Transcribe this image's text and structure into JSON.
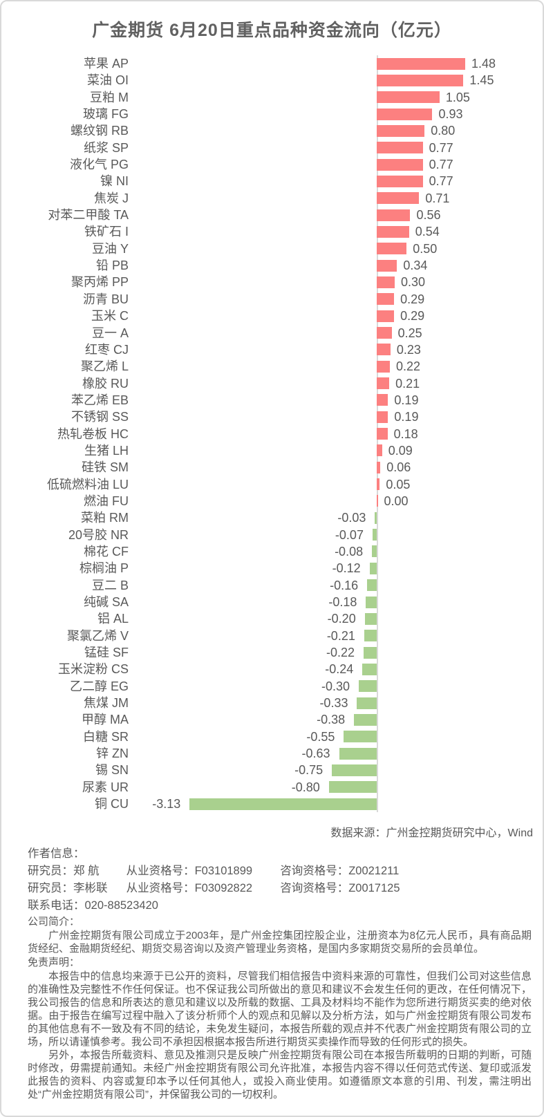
{
  "title": "广金期货 6月20日重点品种资金流向（亿元）",
  "chart_data": {
    "type": "bar",
    "orientation": "horizontal",
    "title": "广金期货 6月20日重点品种资金流向（亿元）",
    "unit": "亿元",
    "xlim": [
      -3.5,
      1.7
    ],
    "grid": false,
    "legend": "none",
    "categories": [
      "苹果 AP",
      "菜油 OI",
      "豆粕 M",
      "玻璃 FG",
      "螺纹钢 RB",
      "纸浆 SP",
      "液化气 PG",
      "镍 NI",
      "焦炭 J",
      "对苯二甲酸 TA",
      "铁矿石 I",
      "豆油 Y",
      "铅 PB",
      "聚丙烯 PP",
      "沥青 BU",
      "玉米 C",
      "豆一 A",
      "红枣 CJ",
      "聚乙烯 L",
      "橡胶 RU",
      "苯乙烯 EB",
      "不锈钢 SS",
      "热轧卷板 HC",
      "生猪 LH",
      "硅铁 SM",
      "低硫燃料油 LU",
      "燃油 FU",
      "菜粕 RM",
      "20号胶 NR",
      "棉花 CF",
      "棕榈油 P",
      "豆二 B",
      "纯碱 SA",
      "铝 AL",
      "聚氯乙烯 V",
      "锰硅 SF",
      "玉米淀粉 CS",
      "乙二醇 EG",
      "焦煤 JM",
      "甲醇 MA",
      "白糖 SR",
      "锌 ZN",
      "锡 SN",
      "尿素 UR",
      "铜 CU"
    ],
    "values": [
      1.48,
      1.45,
      1.05,
      0.93,
      0.8,
      0.77,
      0.77,
      0.77,
      0.71,
      0.56,
      0.54,
      0.5,
      0.34,
      0.3,
      0.29,
      0.29,
      0.25,
      0.23,
      0.22,
      0.21,
      0.19,
      0.19,
      0.18,
      0.09,
      0.06,
      0.05,
      0.0,
      -0.03,
      -0.07,
      -0.08,
      -0.12,
      -0.16,
      -0.18,
      -0.2,
      -0.21,
      -0.22,
      -0.24,
      -0.3,
      -0.33,
      -0.38,
      -0.55,
      -0.63,
      -0.75,
      -0.8,
      -3.13
    ],
    "positive_color": "#FC8080",
    "negative_color": "#A9D08E",
    "axis_color": "#D9D9D9",
    "text_color": "#595959"
  },
  "source_note": "数据来源：广州金控期货研究中心，Wind",
  "footer": {
    "author_heading": "作者信息：",
    "researchers": [
      {
        "name_label": "研究员：郑 航",
        "practice_no": "从业资格号：F03101899",
        "advisory_no": "咨询资格号：Z0021211"
      },
      {
        "name_label": "研究员：李彬联",
        "practice_no": "从业资格号：F03092822",
        "advisory_no": "咨询资格号：Z0017125"
      }
    ],
    "phone": "联系电话：020-88523420",
    "company_heading": "公司简介：",
    "company_text": "广州金控期货有限公司成立于2003年，是广州金控集团控股企业，注册资本为8亿元人民币，具有商品期货经纪、金融期货经纪、期货交易咨询以及资产管理业务资格，是国内多家期货交易所的会员单位。",
    "disclaimer_heading": "免责声明：",
    "disclaimer_text_1": "本报告中的信息均来源于已公开的资料，尽管我们相信报告中资料来源的可靠性，但我们公司对这些信息的准确性及完整性不作任何保证。也不保证我公司所做出的意见和建议不会发生任何的更改，在任何情况下，我公司报告的信息和所表达的意见和建议以及所载的数据、工具及材料均不能作为您所进行期货买卖的绝对依据。由于报告在编写过程中融入了该分析师个人的观点和见解以及分析方法，如与广州金控期货有限公司发布的其他信息有不一致及有不同的结论，未免发生疑问，本报告所载的观点并不代表广州金控期货有限公司的立场，所以请谨慎参考。我公司不承担因根据本报告所进行期货买卖操作而导致的任何形式的损失。",
    "disclaimer_text_2": "另外，本报告所载资料、意见及推测只是反映广州金控期货有限公司在本报告所载明的日期的判断，可随时修改，毋需提前通知。未经广州金控期货有限公司允许批准，本报告内容不得以任何范式传送、复印或派发此报告的资料、内容或复印本予以任何其他人，或投入商业使用。如遵循原文本意的引用、刊发，需注明出处“广州金控期货有限公司”，并保留我公司的一切权利。"
  }
}
